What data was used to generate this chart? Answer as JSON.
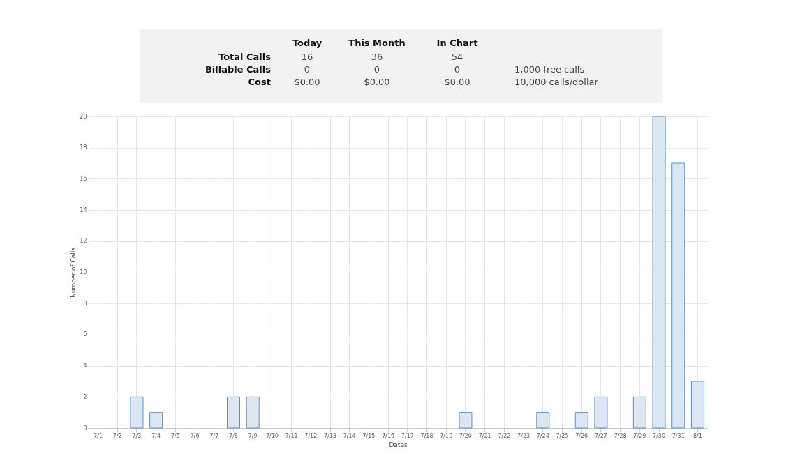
{
  "chart_data": [
    {
      "type": "other",
      "annotations": [
        "Today",
        "This Month",
        "In Chart",
        "Total Calls",
        "Billable Calls",
        "Cost",
        "16",
        "36",
        "54",
        "0",
        "0",
        "0",
        "$0.00",
        "$0.00",
        "$0.00",
        "1,000 free calls",
        "10,000 calls/dollar"
      ]
    },
    {
      "type": "bar",
      "xlabel": "Dates",
      "ylabel": "Number of Calls",
      "categories": [
        "7/1",
        "7/2",
        "7/3",
        "7/4",
        "7/5",
        "7/6",
        "7/7",
        "7/8",
        "7/9",
        "7/10",
        "7/11",
        "7/12",
        "7/13",
        "7/14",
        "7/15",
        "7/16",
        "7/17",
        "7/18",
        "7/19",
        "7/20",
        "7/21",
        "7/22",
        "7/23",
        "7/24",
        "7/25",
        "7/26",
        "7/27",
        "7/28",
        "7/29",
        "7/30",
        "7/31",
        "8/1"
      ],
      "values": [
        0,
        0,
        2,
        1,
        0,
        0,
        0,
        2,
        2,
        0,
        0,
        0,
        0,
        0,
        0,
        0,
        0,
        0,
        0,
        1,
        0,
        0,
        0,
        1,
        0,
        1,
        2,
        0,
        2,
        20,
        17,
        3
      ],
      "color": "#dae6f2",
      "ylim": [
        0,
        20
      ],
      "yticks": [
        0,
        2,
        4,
        6,
        8,
        10,
        12,
        14,
        16,
        18,
        20
      ],
      "grid": true
    }
  ]
}
